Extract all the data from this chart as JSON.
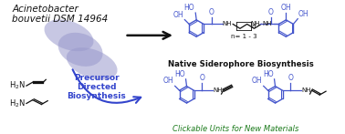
{
  "title_line1": "Acinetobacter",
  "title_line2": "bouvetii DSM 14964",
  "label_native": "Native Siderophore Biosynthesis",
  "label_clickable": "Clickable Units for New Materials",
  "label_precursor_line1": "Precursor",
  "label_precursor_line2": "Directed",
  "label_precursor_line3": "Biosynthesis",
  "bg_color": "#ffffff",
  "bacteria_color": "#9999cc",
  "bacteria_alpha": 0.55,
  "blue_color": "#4455cc",
  "green_color": "#1a7a1a",
  "black_color": "#111111",
  "arrow_color": "#111111",
  "precursor_arrow_color": "#3344cc"
}
